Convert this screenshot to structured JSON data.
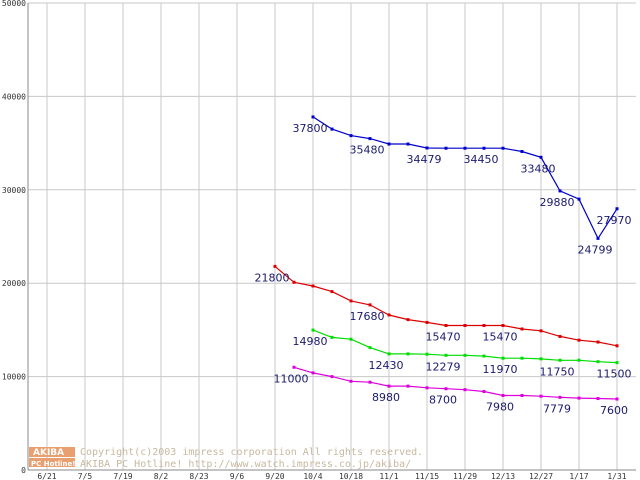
{
  "chart_data": {
    "type": "line",
    "ylim": [
      0,
      50000
    ],
    "y_ticks": [
      "0",
      "10000",
      "20000",
      "30000",
      "40000",
      "50000"
    ],
    "x_ticks": [
      "6/21",
      "7/5",
      "7/19",
      "8/2",
      "8/23",
      "9/6",
      "9/20",
      "10/4",
      "10/18",
      "11/1",
      "11/15",
      "11/29",
      "12/13",
      "12/27",
      "1/17",
      "1/31"
    ],
    "grid": true,
    "series": [
      {
        "color": "#0000cc",
        "points": [
          [
            7,
            37800
          ],
          [
            7.5,
            36500
          ],
          [
            8,
            35800
          ],
          [
            8.5,
            35480
          ],
          [
            9,
            34900
          ],
          [
            9.5,
            34900
          ],
          [
            10,
            34479
          ],
          [
            10.5,
            34450
          ],
          [
            11,
            34450
          ],
          [
            11.5,
            34450
          ],
          [
            12,
            34450
          ],
          [
            12.5,
            34100
          ],
          [
            13,
            33480
          ],
          [
            13.5,
            29880
          ],
          [
            14,
            29000
          ],
          [
            14.5,
            24799
          ],
          [
            15,
            27970
          ]
        ],
        "labels": [
          [
            7,
            37800,
            "37800"
          ],
          [
            8.5,
            35480,
            "35480"
          ],
          [
            10,
            34479,
            "34479"
          ],
          [
            11.5,
            34450,
            "34450"
          ],
          [
            13,
            33480,
            "33480"
          ],
          [
            13.5,
            29880,
            "29880"
          ],
          [
            14.5,
            24799,
            "24799"
          ],
          [
            15,
            27970,
            "27970"
          ]
        ]
      },
      {
        "color": "#dd0000",
        "points": [
          [
            6,
            21800
          ],
          [
            6.5,
            20100
          ],
          [
            7,
            19700
          ],
          [
            7.5,
            19100
          ],
          [
            8,
            18100
          ],
          [
            8.5,
            17680
          ],
          [
            9,
            16600
          ],
          [
            9.5,
            16100
          ],
          [
            10,
            15800
          ],
          [
            10.5,
            15470
          ],
          [
            11,
            15470
          ],
          [
            11.5,
            15470
          ],
          [
            12,
            15470
          ],
          [
            12.5,
            15100
          ],
          [
            13,
            14900
          ],
          [
            13.5,
            14300
          ],
          [
            14,
            13900
          ],
          [
            14.5,
            13700
          ],
          [
            15,
            13300
          ]
        ],
        "labels": [
          [
            6,
            21800,
            "21800"
          ],
          [
            8.5,
            17680,
            "17680"
          ],
          [
            10.5,
            15470,
            "15470"
          ],
          [
            12,
            15470,
            "15470"
          ]
        ]
      },
      {
        "color": "#00dd00",
        "points": [
          [
            7,
            14980
          ],
          [
            7.5,
            14200
          ],
          [
            8,
            14000
          ],
          [
            8.5,
            13100
          ],
          [
            9,
            12430
          ],
          [
            9.5,
            12430
          ],
          [
            10,
            12400
          ],
          [
            10.5,
            12279
          ],
          [
            11,
            12279
          ],
          [
            11.5,
            12200
          ],
          [
            12,
            11970
          ],
          [
            12.5,
            11970
          ],
          [
            13,
            11900
          ],
          [
            13.5,
            11750
          ],
          [
            14,
            11750
          ],
          [
            14.5,
            11600
          ],
          [
            15,
            11500
          ]
        ],
        "labels": [
          [
            7,
            14980,
            "14980"
          ],
          [
            9,
            12430,
            "12430"
          ],
          [
            10.5,
            12279,
            "12279"
          ],
          [
            12,
            11970,
            "11970"
          ],
          [
            13.5,
            11750,
            "11750"
          ],
          [
            15,
            11500,
            "11500"
          ]
        ]
      },
      {
        "color": "#dd00dd",
        "points": [
          [
            6.5,
            11000
          ],
          [
            7,
            10400
          ],
          [
            7.5,
            10000
          ],
          [
            8,
            9500
          ],
          [
            8.5,
            9400
          ],
          [
            9,
            8980
          ],
          [
            9.5,
            8980
          ],
          [
            10,
            8800
          ],
          [
            10.5,
            8700
          ],
          [
            11,
            8600
          ],
          [
            11.5,
            8400
          ],
          [
            12,
            7980
          ],
          [
            12.5,
            7980
          ],
          [
            13,
            7900
          ],
          [
            13.5,
            7779
          ],
          [
            14,
            7700
          ],
          [
            14.5,
            7650
          ],
          [
            15,
            7600
          ]
        ],
        "labels": [
          [
            6.5,
            11000,
            "11000"
          ],
          [
            9,
            8980,
            "8980"
          ],
          [
            10.5,
            8700,
            "8700"
          ],
          [
            12,
            7980,
            "7980"
          ],
          [
            13.5,
            7779,
            "7779"
          ],
          [
            15,
            7600,
            "7600"
          ]
        ]
      }
    ]
  },
  "watermark": {
    "logo_top": "AKIBA",
    "logo_bottom": "PC Hotline!",
    "copyright": "Copyright(c)2003 impress corporation All rights reserved.",
    "url_line": "AKIBA PC Hotline!  http://www.watch.impress.co.jp/akiba/"
  }
}
